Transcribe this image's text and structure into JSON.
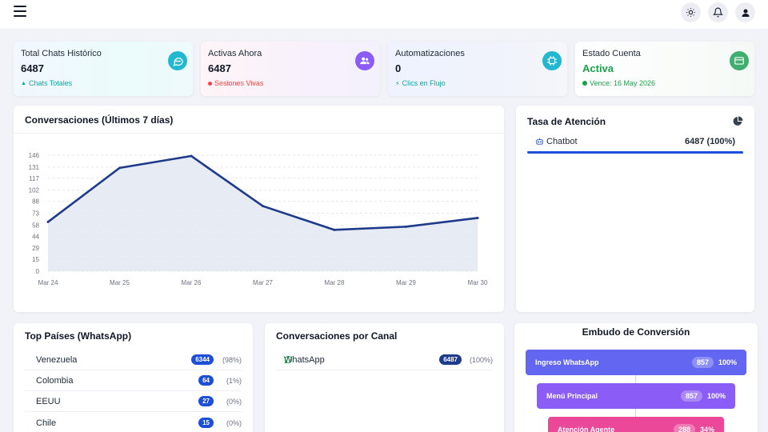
{
  "header": {
    "menu_icon": "hamburger-icon",
    "icons": [
      "sun-icon",
      "bell-icon",
      "user-icon"
    ]
  },
  "stats": [
    {
      "label": "Total Chats Histórico",
      "value": "6487",
      "sub": "Chats Totales",
      "sub_icon": "triangle-up-icon",
      "icon": "chat-icon",
      "color": "#22b8cf",
      "sub_color": "#0ea5a5"
    },
    {
      "label": "Activas Ahora",
      "value": "6487",
      "sub": "Sesiones Vivas",
      "sub_icon": "dot-icon",
      "icon": "users-icon",
      "color": "#8b5cf6",
      "sub_color": "#ef4444"
    },
    {
      "label": "Automatizaciones",
      "value": "0",
      "sub": "Clics en Flujo",
      "sub_icon": "bolt-icon",
      "icon": "chip-icon",
      "color": "#22b8cf",
      "sub_color": "#0ea5a5"
    },
    {
      "label": "Estado Cuenta",
      "value": "Activa",
      "sub": "Vence: 16 May 2026",
      "sub_icon": "check-circle-icon",
      "icon": "credit-card-icon",
      "color": "#3fae6e",
      "sub_color": "#16a34a"
    }
  ],
  "conversations": {
    "title": "Conversaciones (Últimos 7 días)",
    "chart_data": {
      "type": "area",
      "categories": [
        "Mar 24",
        "Mar 25",
        "Mar 26",
        "Mar 27",
        "Mar 28",
        "Mar 29",
        "Mar 30"
      ],
      "values": [
        62,
        130,
        145,
        82,
        52,
        56,
        67
      ],
      "y_ticks": [
        0,
        15,
        29,
        44,
        58,
        73,
        88,
        102,
        117,
        131,
        146
      ],
      "ylim": [
        0,
        146
      ],
      "grid": true,
      "line_color": "#1e3a8a",
      "fill_color": "#e3e7f2"
    }
  },
  "tasa": {
    "title": "Tasa de Atención",
    "title_icon": "pie-chart-icon",
    "row": {
      "icon": "robot-icon",
      "label": "Chatbot",
      "value": "6487 (100%)",
      "progress": 1.0
    }
  },
  "paises": {
    "title": "Top Países (WhatsApp)",
    "rows": [
      {
        "name": "Venezuela",
        "count": "6344",
        "pct": "(98%)"
      },
      {
        "name": "Colombia",
        "count": "64",
        "pct": "(1%)"
      },
      {
        "name": "EEUU",
        "count": "27",
        "pct": "(0%)"
      },
      {
        "name": "Chile",
        "count": "15",
        "pct": "(0%)"
      }
    ]
  },
  "canal": {
    "title": "Conversaciones por Canal",
    "rows": [
      {
        "name": "WhatsApp",
        "icon": "whatsapp-icon",
        "count": "6487",
        "pct": "(100%)"
      }
    ]
  },
  "embudo": {
    "title": "Embudo de Conversión",
    "stages": [
      {
        "name": "Ingreso WhatsApp",
        "count": "857",
        "pct": "100%",
        "color": "#6366f1"
      },
      {
        "name": "Menú Principal",
        "count": "857",
        "pct": "100%",
        "color": "#8b5cf6"
      },
      {
        "name": "Atención Agente",
        "count": "288",
        "pct": "34%",
        "color": "#ec4899"
      }
    ]
  }
}
